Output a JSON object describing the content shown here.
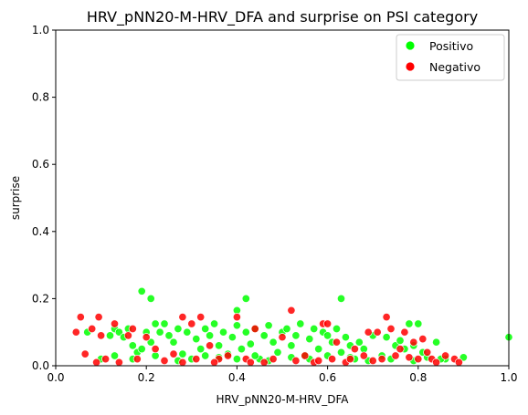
{
  "chart_data": {
    "type": "scatter",
    "title": "HRV_pNN20-M-HRV_DFA and surprise on PSI category",
    "xlabel": "HRV_pNN20-M-HRV_DFA",
    "ylabel": "surprise",
    "xlim": [
      0.0,
      1.0
    ],
    "ylim": [
      0.0,
      1.0
    ],
    "xticks": [
      "0.0",
      "0.2",
      "0.4",
      "0.6",
      "0.8",
      "1.0"
    ],
    "yticks": [
      "0.0",
      "0.2",
      "0.4",
      "0.6",
      "0.8",
      "1.0"
    ],
    "grid": false,
    "legend_position": "top-right",
    "series": [
      {
        "name": "Positivo",
        "color": "#00ff00",
        "points": [
          [
            0.19,
            0.222
          ],
          [
            0.21,
            0.2
          ],
          [
            0.42,
            0.2
          ],
          [
            0.63,
            0.2
          ],
          [
            0.4,
            0.165
          ],
          [
            1.0,
            0.085
          ],
          [
            0.07,
            0.1
          ],
          [
            0.12,
            0.09
          ],
          [
            0.13,
            0.11
          ],
          [
            0.14,
            0.1
          ],
          [
            0.15,
            0.085
          ],
          [
            0.16,
            0.11
          ],
          [
            0.17,
            0.06
          ],
          [
            0.18,
            0.04
          ],
          [
            0.19,
            0.05
          ],
          [
            0.2,
            0.1
          ],
          [
            0.21,
            0.07
          ],
          [
            0.22,
            0.125
          ],
          [
            0.23,
            0.1
          ],
          [
            0.24,
            0.125
          ],
          [
            0.25,
            0.09
          ],
          [
            0.26,
            0.07
          ],
          [
            0.27,
            0.11
          ],
          [
            0.28,
            0.035
          ],
          [
            0.29,
            0.1
          ],
          [
            0.3,
            0.02
          ],
          [
            0.31,
            0.08
          ],
          [
            0.32,
            0.05
          ],
          [
            0.33,
            0.11
          ],
          [
            0.34,
            0.09
          ],
          [
            0.35,
            0.125
          ],
          [
            0.36,
            0.06
          ],
          [
            0.37,
            0.1
          ],
          [
            0.38,
            0.035
          ],
          [
            0.39,
            0.085
          ],
          [
            0.4,
            0.12
          ],
          [
            0.41,
            0.05
          ],
          [
            0.42,
            0.1
          ],
          [
            0.43,
            0.065
          ],
          [
            0.44,
            0.11
          ],
          [
            0.45,
            0.02
          ],
          [
            0.46,
            0.09
          ],
          [
            0.47,
            0.12
          ],
          [
            0.48,
            0.07
          ],
          [
            0.49,
            0.04
          ],
          [
            0.5,
            0.1
          ],
          [
            0.51,
            0.11
          ],
          [
            0.52,
            0.06
          ],
          [
            0.53,
            0.09
          ],
          [
            0.54,
            0.125
          ],
          [
            0.55,
            0.03
          ],
          [
            0.56,
            0.08
          ],
          [
            0.57,
            0.11
          ],
          [
            0.58,
            0.05
          ],
          [
            0.59,
            0.1
          ],
          [
            0.6,
            0.09
          ],
          [
            0.61,
            0.07
          ],
          [
            0.62,
            0.11
          ],
          [
            0.63,
            0.04
          ],
          [
            0.64,
            0.085
          ],
          [
            0.65,
            0.06
          ],
          [
            0.66,
            0.02
          ],
          [
            0.67,
            0.07
          ],
          [
            0.68,
            0.05
          ],
          [
            0.7,
            0.09
          ],
          [
            0.72,
            0.03
          ],
          [
            0.73,
            0.085
          ],
          [
            0.75,
            0.06
          ],
          [
            0.76,
            0.075
          ],
          [
            0.77,
            0.05
          ],
          [
            0.78,
            0.125
          ],
          [
            0.79,
            0.06
          ],
          [
            0.8,
            0.125
          ],
          [
            0.81,
            0.04
          ],
          [
            0.82,
            0.025
          ],
          [
            0.84,
            0.07
          ],
          [
            0.86,
            0.02
          ],
          [
            0.9,
            0.025
          ],
          [
            0.1,
            0.02
          ],
          [
            0.13,
            0.03
          ],
          [
            0.17,
            0.02
          ],
          [
            0.22,
            0.03
          ],
          [
            0.27,
            0.015
          ],
          [
            0.33,
            0.03
          ],
          [
            0.36,
            0.025
          ],
          [
            0.4,
            0.02
          ],
          [
            0.44,
            0.03
          ],
          [
            0.47,
            0.015
          ],
          [
            0.52,
            0.025
          ],
          [
            0.56,
            0.02
          ],
          [
            0.6,
            0.03
          ],
          [
            0.65,
            0.025
          ],
          [
            0.69,
            0.015
          ],
          [
            0.74,
            0.02
          ],
          [
            0.79,
            0.015
          ],
          [
            0.85,
            0.02
          ]
        ]
      },
      {
        "name": "Negativo",
        "color": "#ff0000",
        "points": [
          [
            0.045,
            0.1
          ],
          [
            0.055,
            0.145
          ],
          [
            0.065,
            0.035
          ],
          [
            0.08,
            0.11
          ],
          [
            0.09,
            0.01
          ],
          [
            0.095,
            0.145
          ],
          [
            0.1,
            0.09
          ],
          [
            0.11,
            0.02
          ],
          [
            0.13,
            0.125
          ],
          [
            0.14,
            0.01
          ],
          [
            0.16,
            0.09
          ],
          [
            0.17,
            0.11
          ],
          [
            0.18,
            0.02
          ],
          [
            0.2,
            0.085
          ],
          [
            0.22,
            0.05
          ],
          [
            0.24,
            0.015
          ],
          [
            0.26,
            0.035
          ],
          [
            0.28,
            0.145
          ],
          [
            0.3,
            0.125
          ],
          [
            0.31,
            0.02
          ],
          [
            0.32,
            0.145
          ],
          [
            0.34,
            0.06
          ],
          [
            0.36,
            0.02
          ],
          [
            0.38,
            0.03
          ],
          [
            0.4,
            0.145
          ],
          [
            0.42,
            0.02
          ],
          [
            0.44,
            0.11
          ],
          [
            0.46,
            0.01
          ],
          [
            0.48,
            0.02
          ],
          [
            0.5,
            0.085
          ],
          [
            0.52,
            0.165
          ],
          [
            0.53,
            0.015
          ],
          [
            0.55,
            0.03
          ],
          [
            0.57,
            0.01
          ],
          [
            0.59,
            0.125
          ],
          [
            0.6,
            0.125
          ],
          [
            0.61,
            0.02
          ],
          [
            0.62,
            0.07
          ],
          [
            0.64,
            0.01
          ],
          [
            0.66,
            0.05
          ],
          [
            0.68,
            0.03
          ],
          [
            0.69,
            0.1
          ],
          [
            0.7,
            0.015
          ],
          [
            0.71,
            0.1
          ],
          [
            0.72,
            0.02
          ],
          [
            0.73,
            0.145
          ],
          [
            0.74,
            0.11
          ],
          [
            0.75,
            0.03
          ],
          [
            0.76,
            0.05
          ],
          [
            0.77,
            0.1
          ],
          [
            0.78,
            0.025
          ],
          [
            0.79,
            0.07
          ],
          [
            0.8,
            0.02
          ],
          [
            0.81,
            0.08
          ],
          [
            0.82,
            0.04
          ],
          [
            0.83,
            0.02
          ],
          [
            0.84,
            0.01
          ],
          [
            0.86,
            0.03
          ],
          [
            0.88,
            0.02
          ],
          [
            0.89,
            0.01
          ],
          [
            0.28,
            0.01
          ],
          [
            0.35,
            0.01
          ],
          [
            0.43,
            0.01
          ],
          [
            0.58,
            0.015
          ],
          [
            0.65,
            0.02
          ]
        ]
      }
    ]
  },
  "colors": {
    "axis": "#000000",
    "marker_edge": "#ffffff",
    "background": "#ffffff"
  }
}
